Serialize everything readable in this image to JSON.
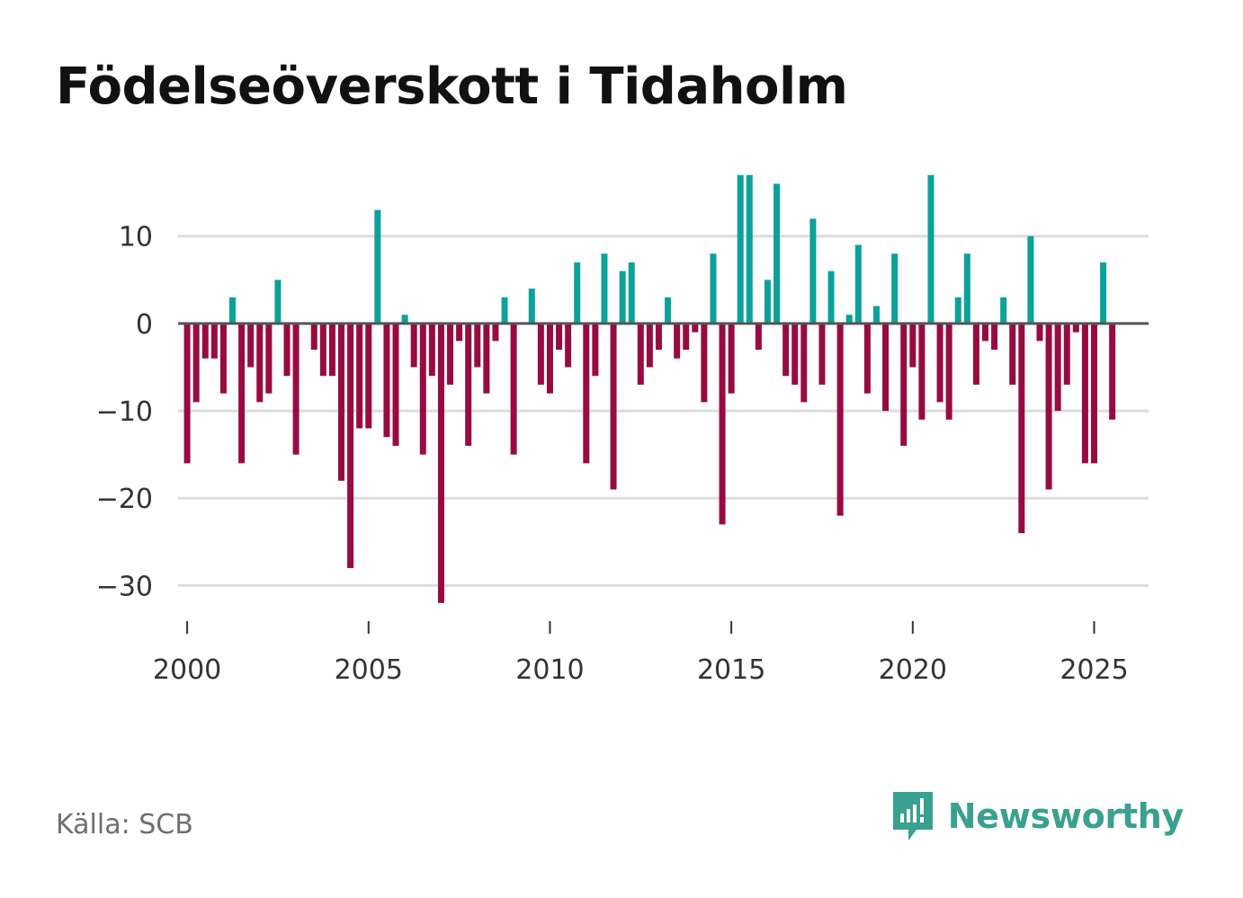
{
  "title": "Födelseöverskott i Tidaholm",
  "source": "Källa: SCB",
  "brand": {
    "name": "Newsworthy",
    "icon": "newsworthy-logo-icon"
  },
  "colors": {
    "positive": "#0aa29b",
    "negative": "#980b40",
    "grid": "#dddddd",
    "zero": "#555555",
    "brand": "#3aa090"
  },
  "chart_data": {
    "type": "bar",
    "title": "Födelseöverskott i Tidaholm",
    "xlabel": "",
    "ylabel": "",
    "ylim": [
      -35,
      18
    ],
    "xlim": [
      1999.75,
      2026.5
    ],
    "yticks": [
      10,
      0,
      -10,
      -20,
      -30
    ],
    "ytick_labels": [
      "10",
      "0",
      "−10",
      "−20",
      "−30"
    ],
    "xticks": [
      2000,
      2005,
      2010,
      2015,
      2020,
      2025
    ],
    "xtick_labels": [
      "2000",
      "2005",
      "2010",
      "2015",
      "2020",
      "2025"
    ],
    "grid": true,
    "x_start": 2000,
    "x_step": 0.25,
    "values": [
      -16,
      -9,
      -4,
      -4,
      -8,
      3,
      -16,
      -5,
      -9,
      -8,
      5,
      -6,
      -15,
      0,
      -3,
      -6,
      -6,
      -18,
      -28,
      -12,
      -12,
      13,
      -13,
      -14,
      1,
      -5,
      -15,
      -6,
      -32,
      -7,
      -2,
      -14,
      -5,
      -8,
      -2,
      3,
      -15,
      0,
      4,
      -7,
      -8,
      -3,
      -5,
      7,
      -16,
      -6,
      8,
      -19,
      6,
      7,
      -7,
      -5,
      -3,
      3,
      -4,
      -3,
      -1,
      -9,
      8,
      -23,
      -8,
      17,
      17,
      -3,
      5,
      16,
      -6,
      -7,
      -9,
      12,
      -7,
      6,
      -22,
      1,
      9,
      -8,
      2,
      -10,
      8,
      -14,
      -5,
      -11,
      17,
      -9,
      -11,
      3,
      8,
      -7,
      -2,
      -3,
      3,
      -7,
      -24,
      10,
      -2,
      -19,
      -10,
      -7,
      -1,
      -16,
      -16,
      7,
      -11
    ]
  }
}
